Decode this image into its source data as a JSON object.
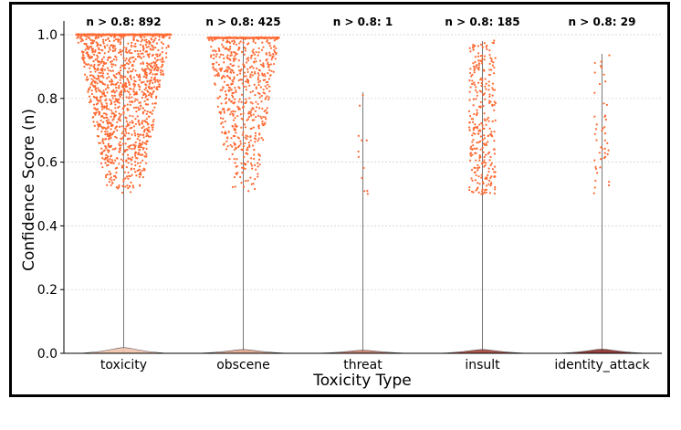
{
  "chart_data": {
    "type": "violin-swarm",
    "title": "",
    "xlabel": "Toxicity Type",
    "ylabel": "Confidence Score (n)",
    "ylim": [
      0,
      1.0
    ],
    "yticks": [
      "0.0",
      "0.2",
      "0.4",
      "0.6",
      "0.8",
      "1.0"
    ],
    "grid": "horizontal dotted",
    "categories": [
      "toxicity",
      "obscene",
      "threat",
      "insult",
      "identity_attack"
    ],
    "counts_above_0_8": [
      892,
      425,
      1,
      185,
      29
    ],
    "count_labels": [
      "n > 0.8: 892",
      "n > 0.8: 425",
      "n > 0.8: 1",
      "n > 0.8: 185",
      "n > 0.8: 29"
    ],
    "swarm_threshold": 0.5,
    "max_score": [
      1.0,
      0.99,
      0.82,
      0.98,
      0.94
    ],
    "violin_colors": [
      "#f2c3ad",
      "#e6a78f",
      "#c97a6a",
      "#a8453c",
      "#8c2d2a"
    ],
    "point_color": "#ff6a33"
  }
}
